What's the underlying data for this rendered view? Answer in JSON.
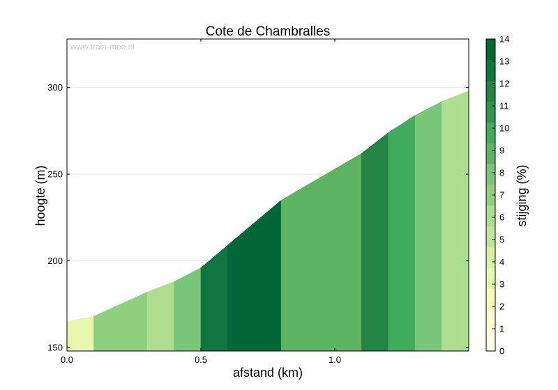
{
  "chart_data": {
    "type": "area",
    "title": "Cote de Chambralles",
    "xlabel": "afstand (km)",
    "ylabel": "hoogte (m)",
    "watermark": "www.train-mee.nl",
    "xlim": [
      0,
      1.5
    ],
    "ylim": [
      148,
      328
    ],
    "x_ticks": [
      0.0,
      0.5,
      1.0
    ],
    "x_tick_labels": [
      "0.0",
      "0.5",
      "1.0"
    ],
    "y_ticks": [
      150,
      200,
      250,
      300
    ],
    "y_tick_labels": [
      "150",
      "200",
      "250",
      "300"
    ],
    "grid": "horizontal",
    "colorbar": {
      "label": "stijging (%)",
      "min": 0,
      "max": 14,
      "ticks": [
        0,
        1,
        2,
        3,
        4,
        5,
        6,
        7,
        8,
        9,
        10,
        11,
        12,
        13,
        14
      ],
      "tick_labels": [
        "0",
        "1",
        "2",
        "3",
        "4",
        "5",
        "6",
        "7",
        "8",
        "9",
        "10",
        "11",
        "12",
        "13",
        "14"
      ],
      "colors": [
        "#ffffe5",
        "#fbfdd2",
        "#f7fcb9",
        "#e9f6ae",
        "#d9f0a3",
        "#c2e699",
        "#addd8e",
        "#8fd07f",
        "#78c679",
        "#5cb462",
        "#41ab5d",
        "#2f9450",
        "#238443",
        "#117541",
        "#006837"
      ]
    },
    "x": [
      0.0,
      0.1,
      0.2,
      0.3,
      0.4,
      0.5,
      0.6,
      0.7,
      0.8,
      0.9,
      1.0,
      1.1,
      1.2,
      1.3,
      1.4,
      1.5
    ],
    "y": [
      165,
      168,
      175,
      182,
      188,
      196,
      209,
      222,
      235,
      244,
      253,
      262,
      274,
      284,
      292,
      298
    ],
    "segment_gradient": [
      3,
      7,
      7,
      6,
      8,
      13,
      14,
      14,
      9,
      9,
      9,
      12,
      10,
      8,
      6
    ]
  }
}
